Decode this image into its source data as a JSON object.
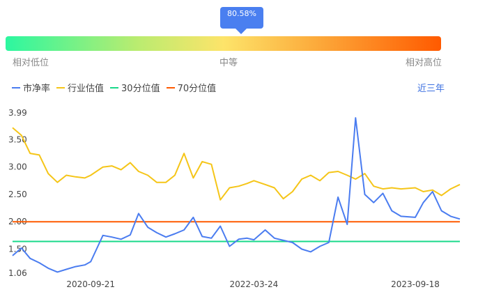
{
  "indicator": {
    "percentile_label": "80.58%",
    "percentile": 80.58,
    "low_label": "相对低位",
    "mid_label": "中等",
    "high_label": "相对高位",
    "colors": [
      "#2cf7a0",
      "#fde46a",
      "#ff5a00"
    ]
  },
  "range_button": "近三年",
  "chart_data": {
    "type": "line",
    "series": [
      {
        "name": "市净率",
        "color": "#4a7cf0"
      },
      {
        "name": "行业估值",
        "color": "#f5c518"
      },
      {
        "name": "30分位值",
        "color": "#18d98a",
        "value": 1.64
      },
      {
        "name": "70分位值",
        "color": "#ff5a00",
        "value": 2.0
      }
    ],
    "ytick_labels": [
      "3.99",
      "3.50",
      "3.00",
      "2.50",
      "2.00",
      "1.50",
      "1.06"
    ],
    "ylim": [
      1.06,
      3.99
    ],
    "xtick_labels": [
      "2020-09-21",
      "2022-03-24",
      "2023-09-18"
    ],
    "x": [
      "2020-01-02",
      "2020-02-01",
      "2020-03-01",
      "2020-04-01",
      "2020-05-01",
      "2020-06-01",
      "2020-07-01",
      "2020-08-01",
      "2020-09-01",
      "2020-09-21",
      "2020-11-01",
      "2020-12-01",
      "2021-01-01",
      "2021-02-01",
      "2021-03-01",
      "2021-04-01",
      "2021-05-01",
      "2021-06-01",
      "2021-07-01",
      "2021-08-01",
      "2021-09-01",
      "2021-10-01",
      "2021-11-01",
      "2021-12-01",
      "2022-01-01",
      "2022-02-01",
      "2022-03-01",
      "2022-03-24",
      "2022-05-01",
      "2022-06-01",
      "2022-07-01",
      "2022-08-01",
      "2022-09-01",
      "2022-10-01",
      "2022-11-01",
      "2022-12-01",
      "2023-01-01",
      "2023-02-01",
      "2023-03-01",
      "2023-04-01",
      "2023-05-01",
      "2023-06-01",
      "2023-07-01",
      "2023-08-01",
      "2023-09-18",
      "2023-10-15",
      "2023-11-15",
      "2023-12-15",
      "2024-01-15",
      "2024-02-15"
    ],
    "pb_values": [
      1.38,
      1.52,
      1.33,
      1.25,
      1.15,
      1.08,
      1.13,
      1.18,
      1.21,
      1.27,
      1.75,
      1.72,
      1.68,
      1.76,
      2.15,
      1.9,
      1.8,
      1.72,
      1.78,
      1.85,
      2.08,
      1.73,
      1.7,
      1.92,
      1.55,
      1.68,
      1.7,
      1.67,
      1.85,
      1.7,
      1.66,
      1.62,
      1.5,
      1.45,
      1.55,
      1.62,
      2.45,
      1.95,
      3.9,
      2.5,
      2.35,
      2.52,
      2.2,
      2.1,
      2.08,
      2.35,
      2.55,
      2.2,
      2.1,
      2.05
    ],
    "industry_values": [
      3.72,
      3.58,
      3.25,
      3.22,
      2.88,
      2.72,
      2.85,
      2.82,
      2.8,
      2.85,
      3.0,
      3.02,
      2.95,
      3.08,
      2.92,
      2.85,
      2.72,
      2.72,
      2.85,
      3.25,
      2.8,
      3.1,
      3.05,
      2.4,
      2.62,
      2.65,
      2.7,
      2.75,
      2.68,
      2.62,
      2.42,
      2.55,
      2.78,
      2.85,
      2.75,
      2.9,
      2.92,
      2.85,
      2.78,
      2.88,
      2.65,
      2.6,
      2.62,
      2.6,
      2.62,
      2.55,
      2.58,
      2.48,
      2.6,
      2.68
    ]
  }
}
